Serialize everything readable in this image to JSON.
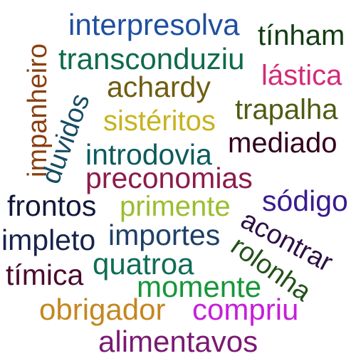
{
  "word_cloud": {
    "words": [
      {
        "text": "interpresolva",
        "color": "#1f4fa0"
      },
      {
        "text": "tínham",
        "color": "#123d12"
      },
      {
        "text": "transconduziu",
        "color": "#0e6a4b"
      },
      {
        "text": "lástica",
        "color": "#d32b76"
      },
      {
        "text": "achardy",
        "color": "#6e5d12"
      },
      {
        "text": "trapalha",
        "color": "#4f5b12"
      },
      {
        "text": "sistéritos",
        "color": "#c7b31f"
      },
      {
        "text": "mediado",
        "color": "#33001d"
      },
      {
        "text": "introdovia",
        "color": "#0c5a5d"
      },
      {
        "text": "preconomias",
        "color": "#8c1b4b"
      },
      {
        "text": "sódigo",
        "color": "#391b8f"
      },
      {
        "text": "frontos",
        "color": "#11183d"
      },
      {
        "text": "primente",
        "color": "#9bbd2f"
      },
      {
        "text": "impleto",
        "color": "#17234e"
      },
      {
        "text": "importes",
        "color": "#1f3f68"
      },
      {
        "text": "quatroa",
        "color": "#0f6d55"
      },
      {
        "text": "tímica",
        "color": "#4a0b2d"
      },
      {
        "text": "momente",
        "color": "#16973a"
      },
      {
        "text": "obrigador",
        "color": "#c48720"
      },
      {
        "text": "compriu",
        "color": "#c51fda"
      },
      {
        "text": "alimentavos",
        "color": "#7a1a72"
      },
      {
        "text": "impanheiro",
        "color": "#8a3f10"
      },
      {
        "text": "duvidos",
        "color": "#164d64"
      },
      {
        "text": "acontrar",
        "color": "#2d0f44"
      },
      {
        "text": "rolonha",
        "color": "#24501a"
      }
    ]
  }
}
